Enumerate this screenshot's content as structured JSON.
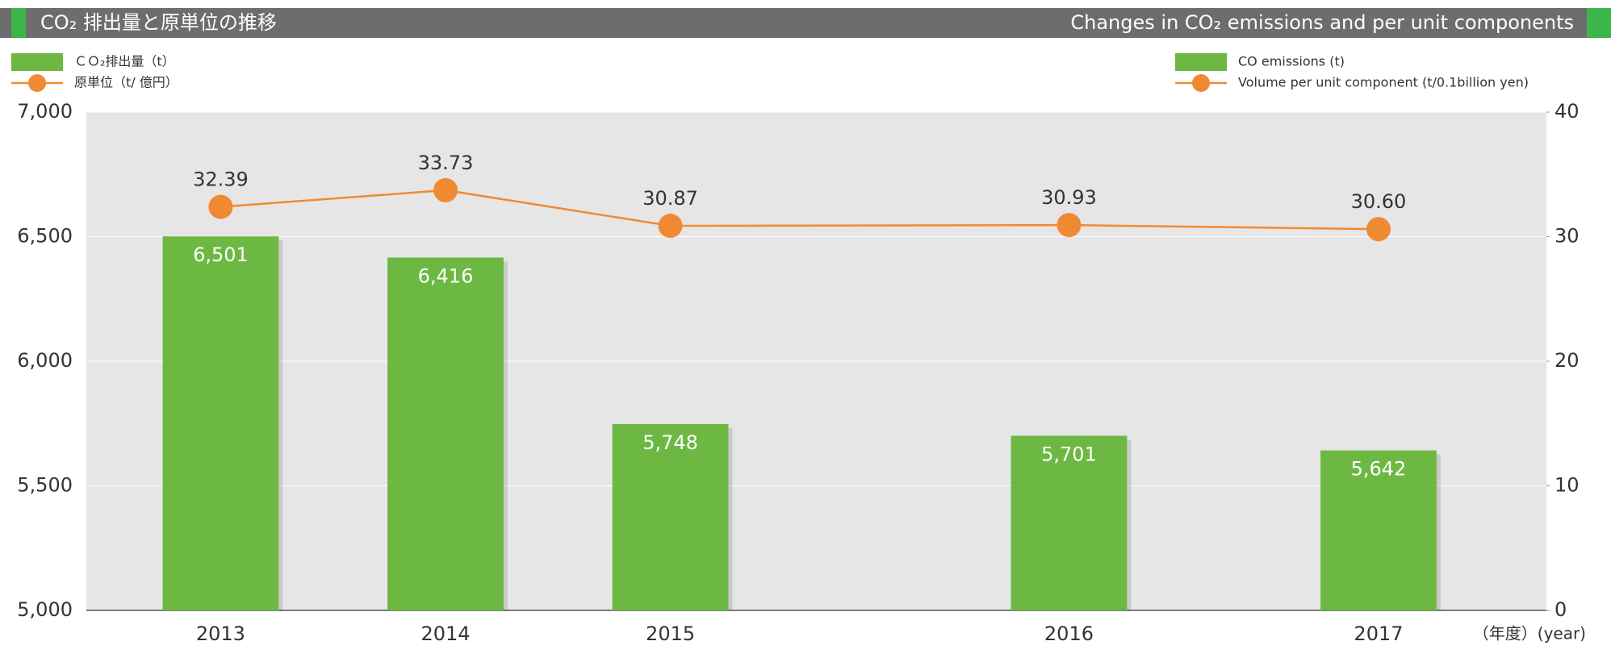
{
  "chart_data": {
    "type": "bar",
    "title": "CO₂ 排出量と原単位の推移",
    "subtitle": "Changes in CO₂ emissions and per unit components",
    "x_unit_label": "（年度）(year)",
    "categories": [
      "2013",
      "2014",
      "2015",
      "2016",
      "2017"
    ],
    "series": [
      {
        "name": "ＣＯ₂排出量（t）",
        "legend_en": "CO emissions (t)",
        "type": "bar",
        "color": "#6db843",
        "values": [
          6501,
          6416,
          5748,
          5701,
          5642
        ],
        "value_labels": [
          "6,501",
          "6,416",
          "5,748",
          "5,701",
          "5,642"
        ]
      },
      {
        "name": "原単位（t/ 億円）",
        "legend_en": "Volume per unit component (t/0.1billion yen)",
        "type": "line",
        "color": "#f08a32",
        "axis": "y2",
        "values": [
          32.39,
          33.73,
          30.87,
          30.93,
          30.6
        ],
        "value_labels": [
          "32.39",
          "33.73",
          "30.87",
          "30.93",
          "30.60"
        ]
      }
    ],
    "ylim": [
      5000,
      7000
    ],
    "yticks": [
      {
        "value": 5000,
        "label": "5,000"
      },
      {
        "value": 5500,
        "label": "5,500"
      },
      {
        "value": 6000,
        "label": "6,000"
      },
      {
        "value": 6500,
        "label": "6,500"
      },
      {
        "value": 7000,
        "label": "7,000"
      }
    ],
    "y2lim": [
      0,
      40
    ],
    "y2ticks": [
      0,
      10,
      20,
      30,
      40
    ],
    "grid": true
  }
}
